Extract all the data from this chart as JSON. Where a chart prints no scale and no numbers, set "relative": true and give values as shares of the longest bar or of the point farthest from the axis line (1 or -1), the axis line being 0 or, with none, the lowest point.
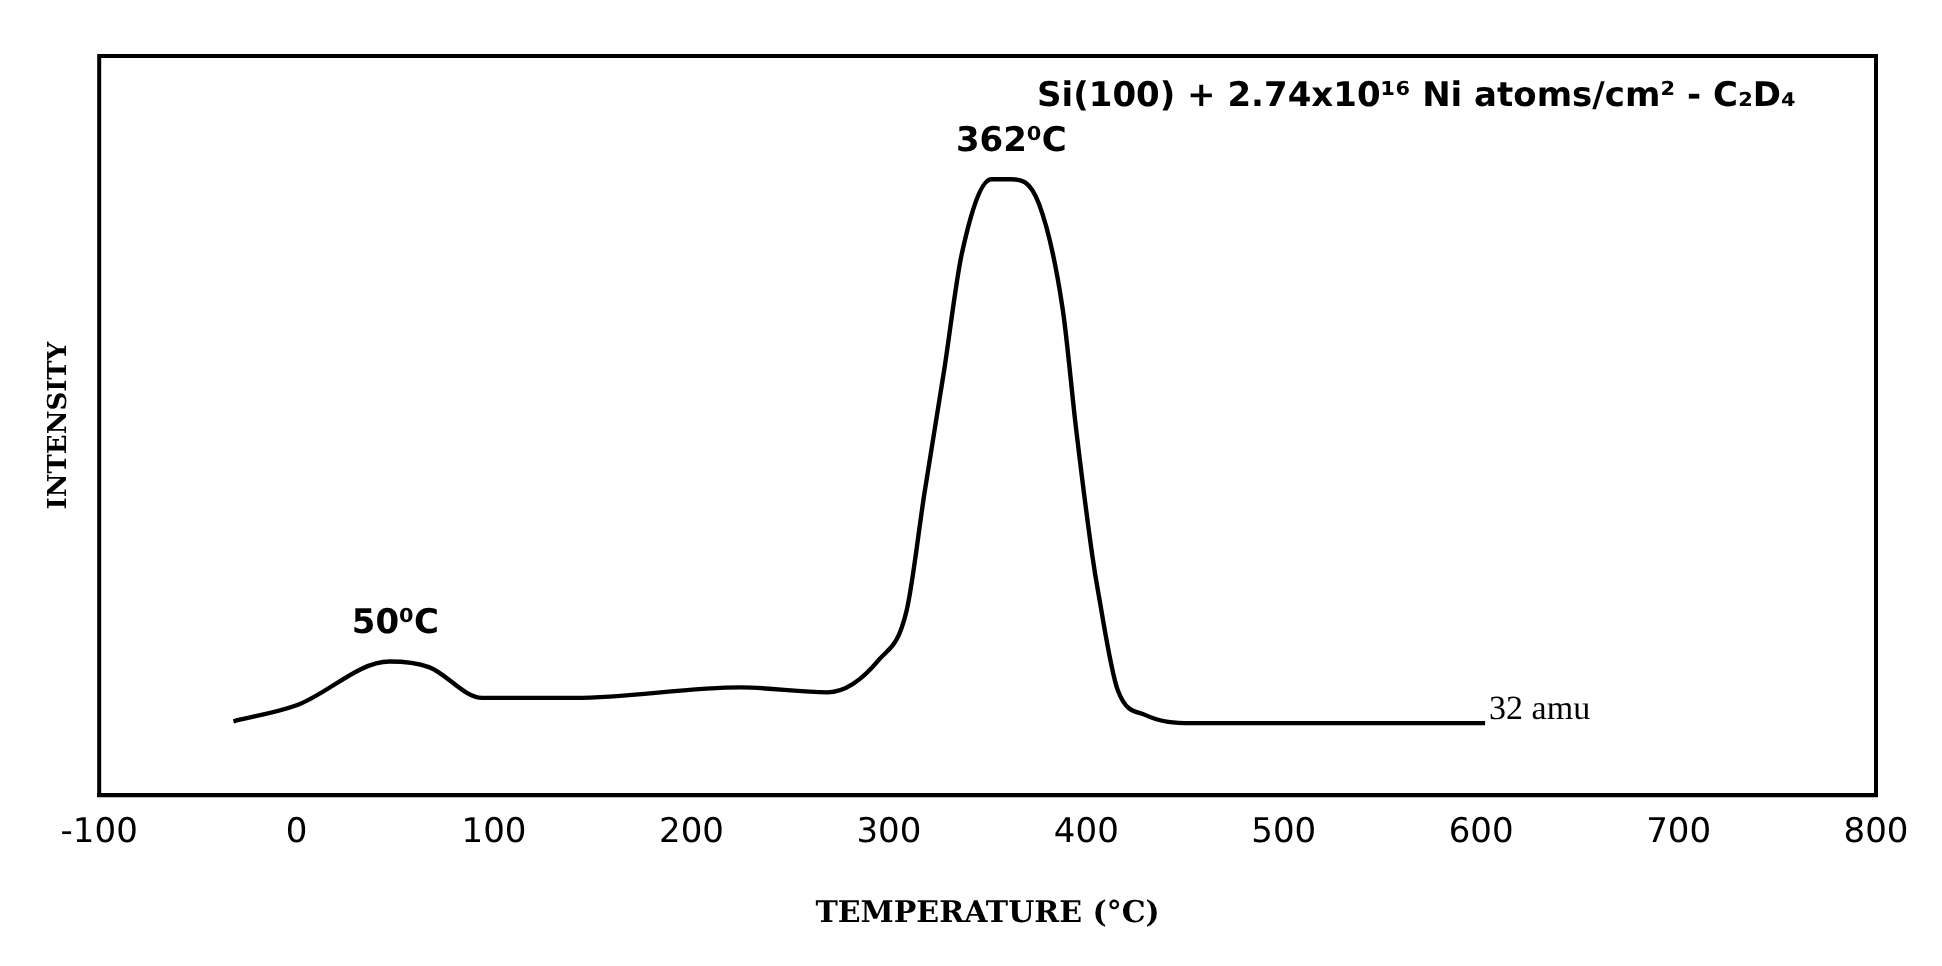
{
  "chart_data": {
    "type": "line",
    "title": "Si(100) + 2.74x10¹⁶ Ni atoms/cm² - C₂D₄",
    "xlabel": "TEMPERATURE (°C)",
    "ylabel": "INTENSITY",
    "relative": true,
    "xlim": [
      -100,
      800
    ],
    "xticks": [
      -100,
      0,
      100,
      200,
      300,
      400,
      500,
      600,
      700,
      800
    ],
    "series": [
      {
        "color": "#000000",
        "x": [
          -32,
          0,
          47,
          67,
          94,
          141,
          225,
          269,
          295,
          309,
          318,
          328,
          337,
          352,
          362,
          376,
          388,
          395,
          403,
          406,
          416,
          430,
          453,
          602
        ],
        "values": [
          0.12,
          0.146,
          0.217,
          0.208,
          0.158,
          0.158,
          0.175,
          0.167,
          0.22,
          0.3,
          0.49,
          0.69,
          0.88,
          1.0,
          1.0,
          0.96,
          0.79,
          0.59,
          0.39,
          0.33,
          0.17,
          0.13,
          0.117,
          0.117
        ]
      }
    ],
    "annotations": [
      {
        "text": "50⁰C",
        "x": 50,
        "y": 0.217
      },
      {
        "text": "362⁰C",
        "x": 362,
        "y": 1.0
      },
      {
        "text": "32 amu",
        "x": 602,
        "y": 0.117
      }
    ],
    "grid": false,
    "legend": false,
    "marker": "none",
    "line_style": "solid"
  }
}
